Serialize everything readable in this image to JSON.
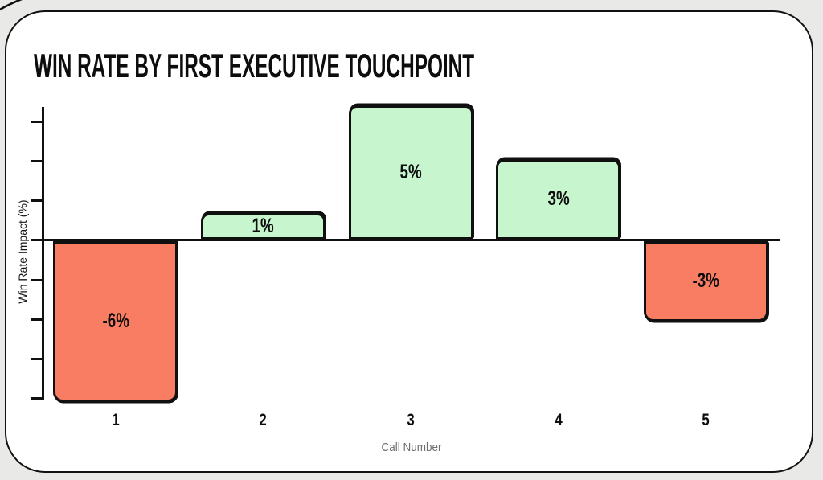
{
  "page": {
    "background_color": "#e9e9e7",
    "card_background_color": "#ffffff",
    "stroke_color": "#111111"
  },
  "chart_data": {
    "type": "bar",
    "title": "WIN RATE BY FIRST EXECUTIVE TOUCHPOINT",
    "xlabel": "Call Number",
    "ylabel": "Win Rate Impact (%)",
    "categories": [
      "1",
      "2",
      "3",
      "4",
      "5"
    ],
    "values": [
      -6,
      1,
      5,
      3,
      -3
    ],
    "bar_labels": [
      "-6%",
      "1%",
      "5%",
      "3%",
      "-3%"
    ],
    "ylim": [
      -6.2,
      5.2
    ],
    "grid": false,
    "legend": "none",
    "y_tick_count": 8,
    "y_ticks_labeled": false,
    "colors": {
      "positive_bar": "#c7f5ce",
      "negative_bar": "#f97d63",
      "bar_border": "#101010",
      "axis": "#101010",
      "xcaption_text": "#6e6e6e"
    }
  }
}
